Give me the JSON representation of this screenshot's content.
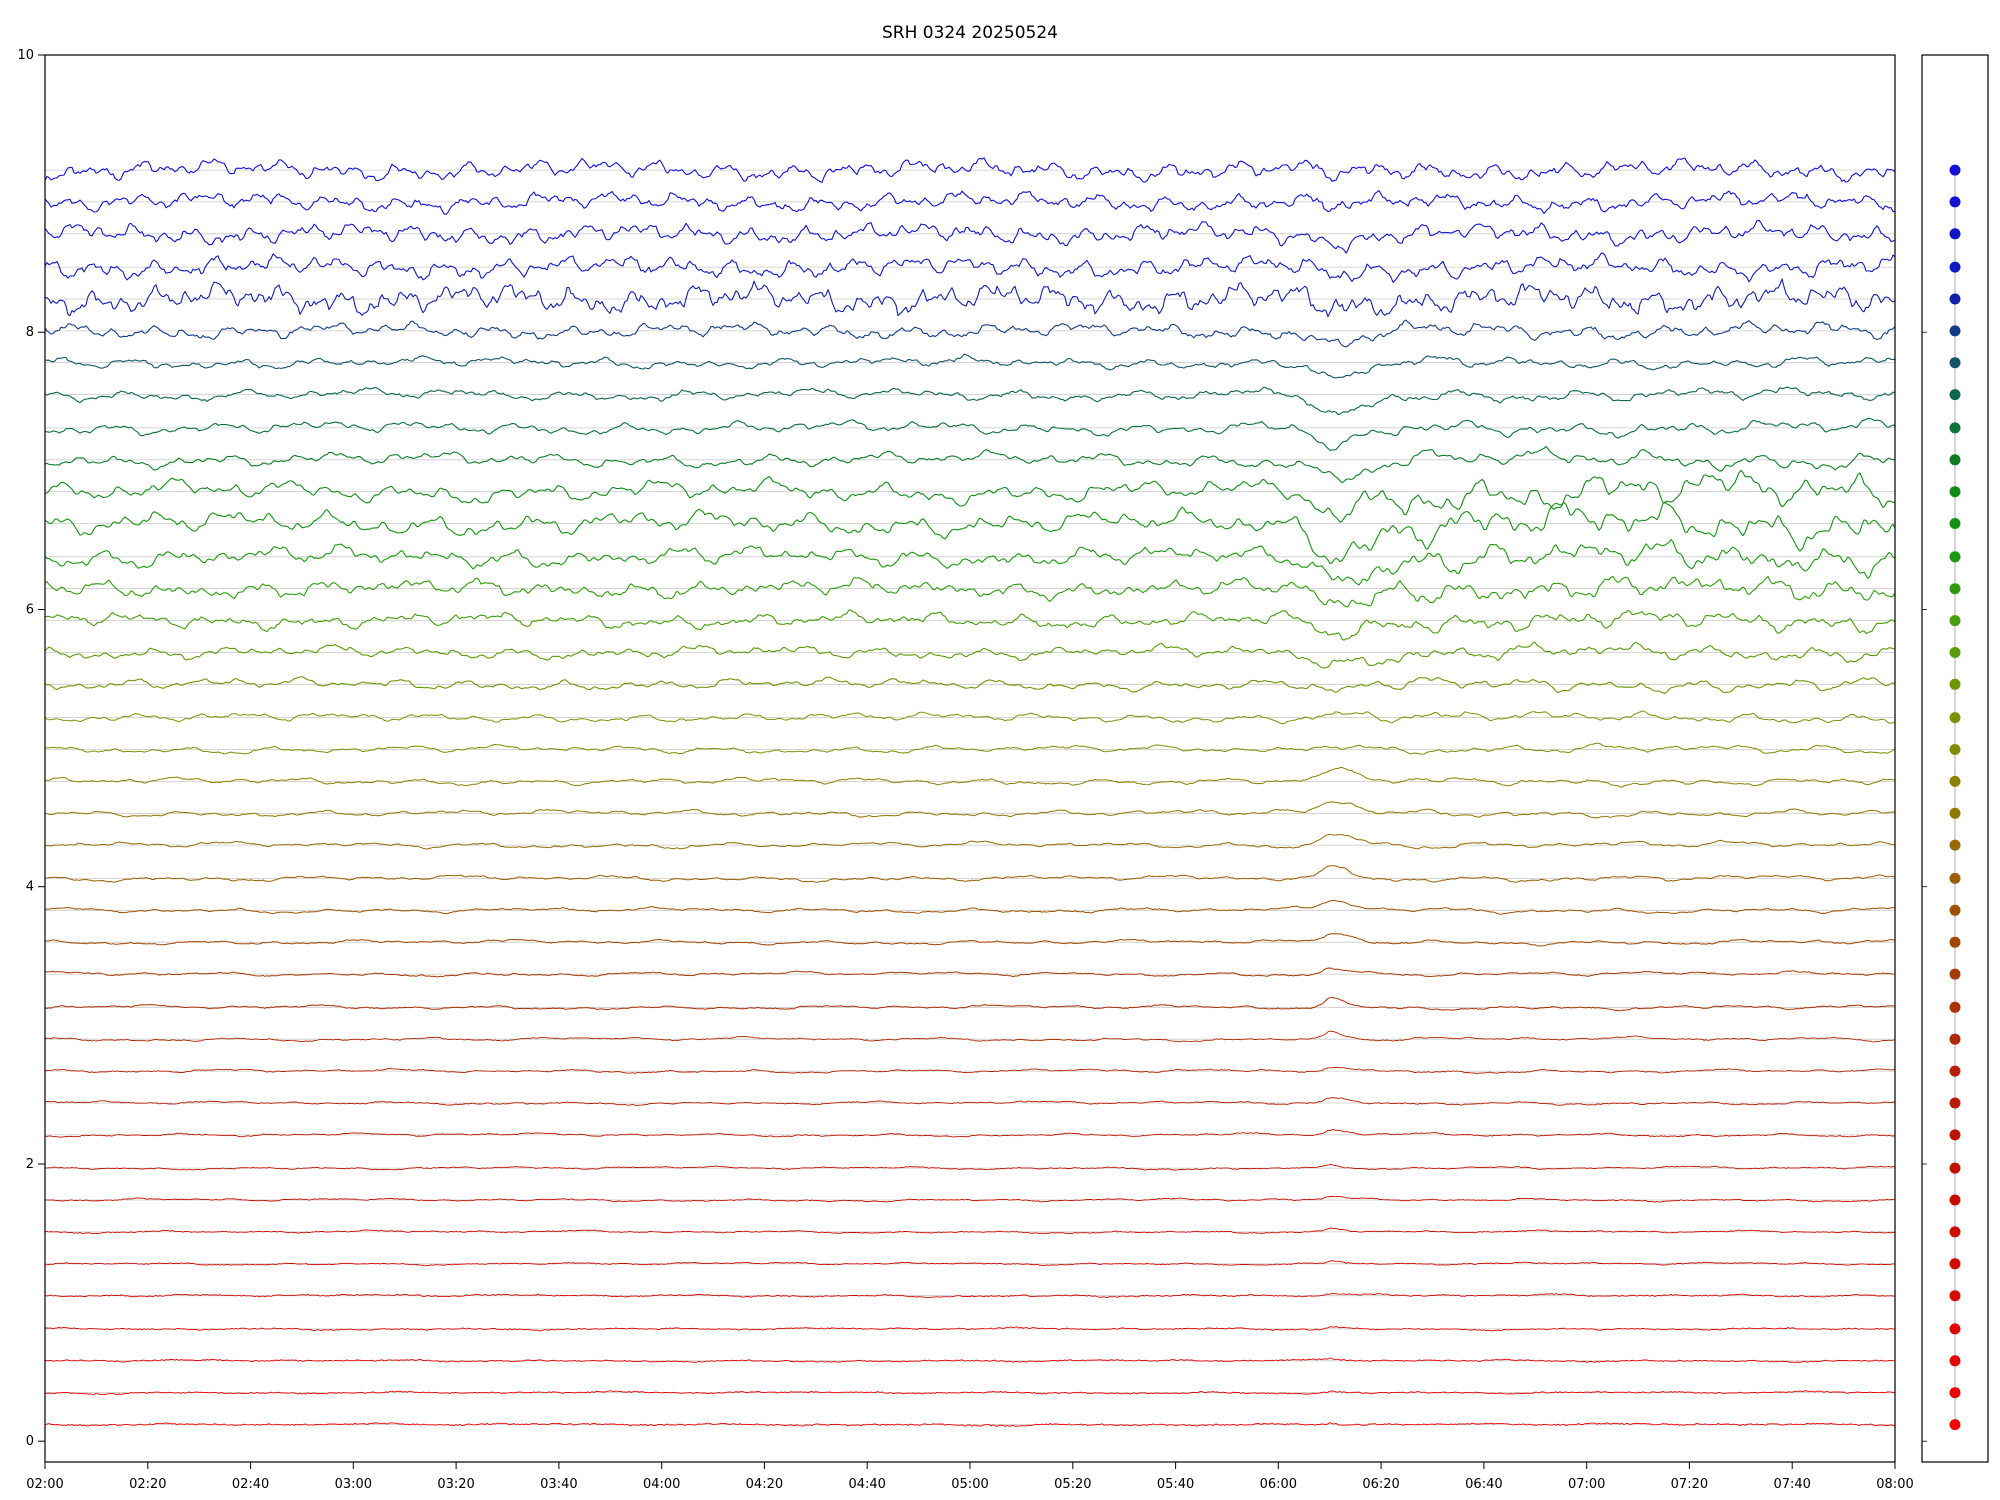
{
  "title": "SRH 0324 20250524",
  "colors": {
    "background": "#ffffff",
    "axis": "#000000",
    "grid": "#c9c9c9",
    "panel_line": "#999999"
  },
  "chart_data": {
    "type": "line",
    "title": "SRH 0324 20250524",
    "xlabel": "",
    "ylabel": "",
    "x_ticks": [
      "02:00",
      "02:20",
      "02:40",
      "03:00",
      "03:20",
      "03:40",
      "04:00",
      "04:20",
      "04:40",
      "05:00",
      "05:20",
      "05:40",
      "06:00",
      "06:20",
      "06:40",
      "07:00",
      "07:20",
      "07:40",
      "08:00"
    ],
    "y_tick_values": [
      0,
      2,
      4,
      6,
      8,
      10
    ],
    "y_tick_labels": [
      "0",
      "2",
      "4",
      "6",
      "8",
      "10"
    ],
    "ylim": [
      -0.15,
      10
    ],
    "grid": true,
    "legend_position": "right-dot-column",
    "n_traces": 40,
    "event": {
      "time_label": "06:10",
      "x_frac": 0.695,
      "description": "transient dip/burst disturbance visible across all channels near 06:10"
    },
    "note": "40 stacked multi-frequency radio intensity traces, blue (high, top) to red (low, bottom); each trace offset to its baseline value; right panel shows one colored dot per channel at its baseline level",
    "traces": [
      {
        "b": 9.17,
        "c": "#1212d6",
        "a": 0.045,
        "f": 95,
        "j": 0.007,
        "e": -0.04,
        "w": 0.01,
        "p": 0
      },
      {
        "b": 8.94,
        "c": "#1113d0",
        "a": 0.042,
        "f": 92,
        "j": 0.007,
        "e": -0.04,
        "w": 0.01,
        "p": 0
      },
      {
        "b": 8.71,
        "c": "#1015ca",
        "a": 0.045,
        "f": 96,
        "j": 0.007,
        "e": -0.05,
        "w": 0.01,
        "p": 0
      },
      {
        "b": 8.47,
        "c": "#101ac0",
        "a": 0.048,
        "f": 100,
        "j": 0.008,
        "e": -0.05,
        "w": 0.01,
        "p": 0
      },
      {
        "b": 8.24,
        "c": "#1220aa",
        "a": 0.065,
        "f": 110,
        "j": 0.009,
        "e": -0.06,
        "w": 0.01,
        "p": 0
      },
      {
        "b": 8.01,
        "c": "#133c86",
        "a": 0.035,
        "f": 78,
        "j": 0.006,
        "e": -0.1,
        "w": 0.01,
        "p": 0.1
      },
      {
        "b": 7.78,
        "c": "#125668",
        "a": 0.026,
        "f": 66,
        "j": 0.005,
        "e": -0.13,
        "w": 0.01,
        "p": 0.1
      },
      {
        "b": 7.55,
        "c": "#0e664e",
        "a": 0.028,
        "f": 60,
        "j": 0.005,
        "e": -0.17,
        "w": 0.011,
        "p": 0.15
      },
      {
        "b": 7.31,
        "c": "#0c7238",
        "a": 0.03,
        "f": 56,
        "j": 0.004,
        "e": -0.15,
        "w": 0.011,
        "p": 0.2
      },
      {
        "b": 7.08,
        "c": "#0e7e26",
        "a": 0.034,
        "f": 56,
        "j": 0.004,
        "e": -0.13,
        "w": 0.011,
        "p": 0.3
      },
      {
        "b": 6.85,
        "c": "#128a1a",
        "a": 0.05,
        "f": 60,
        "j": 0.004,
        "e": -0.16,
        "w": 0.012,
        "p": 0.8
      },
      {
        "b": 6.62,
        "c": "#159212",
        "a": 0.055,
        "f": 64,
        "j": 0.004,
        "e": -0.19,
        "w": 0.012,
        "p": 0.6
      },
      {
        "b": 6.38,
        "c": "#1b980e",
        "a": 0.046,
        "f": 68,
        "j": 0.004,
        "e": -0.15,
        "w": 0.012,
        "p": 0.5
      },
      {
        "b": 6.15,
        "c": "#2e9c0c",
        "a": 0.04,
        "f": 72,
        "j": 0.004,
        "e": -0.12,
        "w": 0.011,
        "p": 0.4
      },
      {
        "b": 5.92,
        "c": "#459e0a",
        "a": 0.035,
        "f": 70,
        "j": 0.004,
        "e": -0.1,
        "w": 0.011,
        "p": 0.35
      },
      {
        "b": 5.69,
        "c": "#5a9c08",
        "a": 0.03,
        "f": 66,
        "j": 0.003,
        "e": -0.08,
        "w": 0.011,
        "p": 0.3
      },
      {
        "b": 5.46,
        "c": "#6c9806",
        "a": 0.026,
        "f": 62,
        "j": 0.003,
        "e": -0.06,
        "w": 0.01,
        "p": 0.3
      },
      {
        "b": 5.22,
        "c": "#7a9204",
        "a": 0.021,
        "f": 56,
        "j": 0.003,
        "e": 0.03,
        "w": 0.008,
        "p": 0.25
      },
      {
        "b": 4.99,
        "c": "#848a02",
        "a": 0.018,
        "f": 52,
        "j": 0.003,
        "e": 0.05,
        "w": 0.008,
        "p": 0.25
      },
      {
        "b": 4.76,
        "c": "#8c8000",
        "a": 0.016,
        "f": 50,
        "j": 0.003,
        "e": 0.07,
        "w": 0.008,
        "p": 0.2
      },
      {
        "b": 4.53,
        "c": "#927600",
        "a": 0.015,
        "f": 48,
        "j": 0.003,
        "e": 0.08,
        "w": 0.008,
        "p": 0.2
      },
      {
        "b": 4.3,
        "c": "#966a00",
        "a": 0.014,
        "f": 46,
        "j": 0.003,
        "e": 0.09,
        "w": 0.008,
        "p": 0.2
      },
      {
        "b": 4.06,
        "c": "#9a5e00",
        "a": 0.013,
        "f": 44,
        "j": 0.003,
        "e": 0.08,
        "w": 0.007,
        "p": 0.15
      },
      {
        "b": 3.83,
        "c": "#9e5200",
        "a": 0.012,
        "f": 42,
        "j": 0.003,
        "e": 0.07,
        "w": 0.007,
        "p": 0.15
      },
      {
        "b": 3.6,
        "c": "#a24600",
        "a": 0.011,
        "f": 42,
        "j": 0.003,
        "e": 0.06,
        "w": 0.007,
        "p": 0.1
      },
      {
        "b": 3.37,
        "c": "#a63a00",
        "a": 0.01,
        "f": 40,
        "j": 0.003,
        "e": 0.05,
        "w": 0.006,
        "p": 0.1
      },
      {
        "b": 3.13,
        "c": "#ac3000",
        "a": 0.01,
        "f": 40,
        "j": 0.003,
        "e": 0.06,
        "w": 0.005,
        "p": 0.1
      },
      {
        "b": 2.9,
        "c": "#b02800",
        "a": 0.009,
        "f": 38,
        "j": 0.003,
        "e": 0.05,
        "w": 0.005,
        "p": 0.1
      },
      {
        "b": 2.67,
        "c": "#b42000",
        "a": 0.009,
        "f": 38,
        "j": 0.003,
        "e": 0.04,
        "w": 0.005,
        "p": 0.05
      },
      {
        "b": 2.44,
        "c": "#b81a00",
        "a": 0.008,
        "f": 36,
        "j": 0.003,
        "e": 0.03,
        "w": 0.005,
        "p": 0.05
      },
      {
        "b": 2.21,
        "c": "#bc1400",
        "a": 0.008,
        "f": 36,
        "j": 0.003,
        "e": 0.03,
        "w": 0.005,
        "p": 0.05
      },
      {
        "b": 1.97,
        "c": "#c21000",
        "a": 0.007,
        "f": 34,
        "j": 0.003,
        "e": 0.025,
        "w": 0.005,
        "p": 0.05
      },
      {
        "b": 1.74,
        "c": "#c60c00",
        "a": 0.007,
        "f": 34,
        "j": 0.003,
        "e": 0.02,
        "w": 0.004,
        "p": 0
      },
      {
        "b": 1.51,
        "c": "#cc0a00",
        "a": 0.006,
        "f": 32,
        "j": 0.003,
        "e": 0.02,
        "w": 0.004,
        "p": 0
      },
      {
        "b": 1.28,
        "c": "#d20800",
        "a": 0.006,
        "f": 32,
        "j": 0.003,
        "e": 0.02,
        "w": 0.004,
        "p": 0
      },
      {
        "b": 1.05,
        "c": "#d80600",
        "a": 0.006,
        "f": 32,
        "j": 0.004,
        "e": 0.015,
        "w": 0.004,
        "p": 0
      },
      {
        "b": 0.81,
        "c": "#de0400",
        "a": 0.005,
        "f": 30,
        "j": 0.004,
        "e": 0.015,
        "w": 0.004,
        "p": 0
      },
      {
        "b": 0.58,
        "c": "#e40200",
        "a": 0.005,
        "f": 30,
        "j": 0.004,
        "e": 0.012,
        "w": 0.004,
        "p": 0
      },
      {
        "b": 0.35,
        "c": "#ec0100",
        "a": 0.005,
        "f": 30,
        "j": 0.004,
        "e": 0.01,
        "w": 0.004,
        "p": 0
      },
      {
        "b": 0.12,
        "c": "#f40000",
        "a": 0.005,
        "f": 30,
        "j": 0.005,
        "e": 0.01,
        "w": 0.004,
        "p": 0
      }
    ]
  }
}
